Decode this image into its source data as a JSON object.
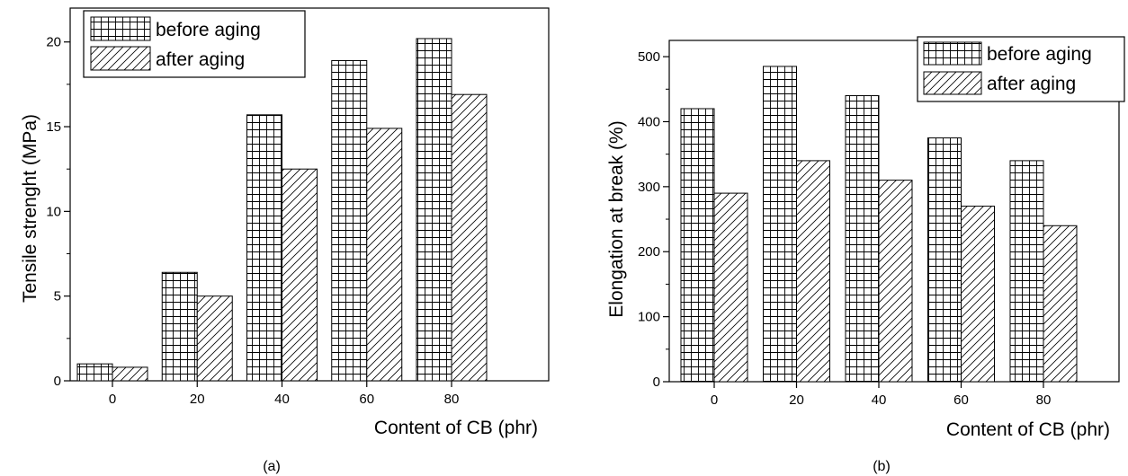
{
  "chart_data": [
    {
      "type": "bar",
      "caption": "(a)",
      "categories": [
        "0",
        "20",
        "40",
        "60",
        "80"
      ],
      "series": [
        {
          "name": "before aging",
          "values": [
            1.0,
            6.4,
            15.7,
            18.9,
            20.2
          ],
          "pattern": "grid"
        },
        {
          "name": "after aging",
          "values": [
            0.8,
            5.0,
            12.5,
            14.9,
            16.9
          ],
          "pattern": "hatch"
        }
      ],
      "xlabel": "Content of CB (phr)",
      "ylabel": "Tensile strenght (MPa)",
      "ylim": [
        0,
        22
      ],
      "yticks": [
        0,
        5,
        10,
        15,
        20
      ],
      "legend": "top-left",
      "grid": false
    },
    {
      "type": "bar",
      "caption": "(b)",
      "categories": [
        "0",
        "20",
        "40",
        "60",
        "80"
      ],
      "series": [
        {
          "name": "before aging",
          "values": [
            420,
            485,
            440,
            375,
            340
          ],
          "pattern": "grid"
        },
        {
          "name": "after aging",
          "values": [
            290,
            340,
            310,
            270,
            240
          ],
          "pattern": "hatch"
        }
      ],
      "xlabel": "Content of CB (phr)",
      "ylabel": "Elongation at break (%)",
      "ylim": [
        0,
        525
      ],
      "yticks": [
        0,
        100,
        200,
        300,
        400,
        500
      ],
      "legend": "top-right",
      "grid": false
    }
  ]
}
